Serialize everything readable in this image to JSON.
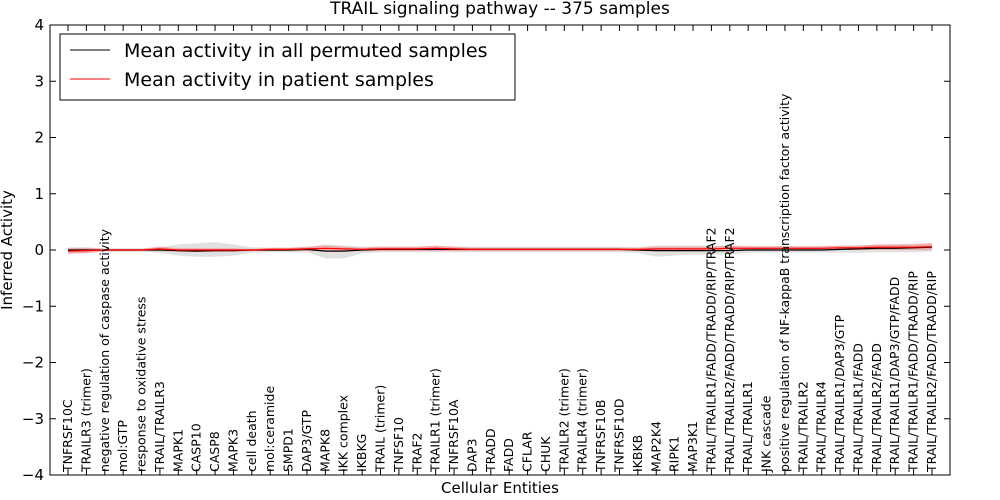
{
  "chart_data": {
    "type": "line",
    "title": "TRAIL signaling pathway -- 375 samples",
    "xlabel": "Cellular Entities",
    "ylabel": "Inferred Activity",
    "ylim": [
      -4,
      4
    ],
    "yticks": [
      -4,
      -3,
      -2,
      -1,
      0,
      1,
      2,
      3,
      4
    ],
    "ytick_labels": [
      "−4",
      "−3",
      "−2",
      "−1",
      "0",
      "1",
      "2",
      "3",
      "4"
    ],
    "grid": false,
    "legend_position": "top-left",
    "categories": [
      "TNFRSF10C",
      "TRAILR3 (trimer)",
      "negative regulation of caspase activity",
      "mol:GTP",
      "response to oxidative stress",
      "TRAIL/TRAILR3",
      "MAPK1",
      "CASP10",
      "CASP8",
      "MAPK3",
      "cell death",
      "mol:ceramide",
      "SMPD1",
      "DAP3/GTP",
      "MAPK8",
      "IKK complex",
      "IKBKG",
      "TRAIL (trimer)",
      "TNFSF10",
      "TRAF2",
      "TRAILR1 (trimer)",
      "TNFRSF10A",
      "DAP3",
      "TRADD",
      "FADD",
      "CFLAR",
      "CHUK",
      "TRAILR2 (trimer)",
      "TRAILR4 (trimer)",
      "TNFRSF10B",
      "TNFRSF10D",
      "IKBKB",
      "MAP2K4",
      "RIPK1",
      "MAP3K1",
      "TRAIL/TRAILR1/FADD/TRADD/RIP/TRAF2",
      "TRAIL/TRAILR2/FADD/TRADD/RIP/TRAF2",
      "TRAIL/TRAILR1",
      "JNK cascade",
      "positive regulation of NF-kappaB transcription factor activity",
      "TRAIL/TRAILR2",
      "TRAIL/TRAILR4",
      "TRAIL/TRAILR1/DAP3/GTP",
      "TRAIL/TRAILR1/FADD",
      "TRAIL/TRAILR2/FADD",
      "TRAIL/TRAILR1/DAP3/GTP/FADD",
      "TRAIL/TRAILR1/FADD/TRADD/RIP",
      "TRAIL/TRAILR2/FADD/TRADD/RIP"
    ],
    "series": [
      {
        "name": "Mean activity in all permuted samples",
        "color": "#000000",
        "values": [
          0.0,
          0.0,
          0.0,
          0.0,
          0.0,
          0.0,
          -0.01,
          -0.02,
          -0.01,
          -0.01,
          0.0,
          0.0,
          0.0,
          0.01,
          -0.02,
          -0.02,
          0.0,
          0.01,
          0.01,
          0.01,
          0.01,
          0.01,
          0.01,
          0.01,
          0.01,
          0.01,
          0.01,
          0.01,
          0.01,
          0.01,
          0.01,
          0.0,
          -0.01,
          -0.01,
          -0.01,
          -0.01,
          -0.01,
          0.0,
          0.0,
          0.0,
          0.0,
          0.0,
          0.01,
          0.02,
          0.03,
          0.03,
          0.04,
          0.05
        ],
        "band_lower": [
          -0.05,
          -0.05,
          -0.03,
          -0.03,
          -0.03,
          -0.05,
          -0.1,
          -0.12,
          -0.12,
          -0.1,
          -0.05,
          -0.04,
          -0.04,
          -0.04,
          -0.15,
          -0.15,
          -0.06,
          -0.04,
          -0.04,
          -0.04,
          -0.04,
          -0.04,
          -0.04,
          -0.04,
          -0.04,
          -0.04,
          -0.04,
          -0.04,
          -0.04,
          -0.04,
          -0.04,
          -0.05,
          -0.12,
          -0.1,
          -0.08,
          -0.08,
          -0.08,
          -0.05,
          -0.05,
          -0.05,
          -0.05,
          -0.05,
          -0.05,
          -0.05,
          -0.04,
          -0.04,
          -0.04,
          -0.03
        ],
        "band_upper": [
          0.05,
          0.05,
          0.03,
          0.03,
          0.03,
          0.05,
          0.1,
          0.12,
          0.14,
          0.1,
          0.05,
          0.04,
          0.04,
          0.05,
          0.1,
          0.08,
          0.06,
          0.06,
          0.06,
          0.06,
          0.06,
          0.06,
          0.06,
          0.06,
          0.06,
          0.06,
          0.06,
          0.06,
          0.06,
          0.06,
          0.06,
          0.05,
          0.08,
          0.08,
          0.08,
          0.08,
          0.08,
          0.06,
          0.06,
          0.06,
          0.06,
          0.06,
          0.07,
          0.08,
          0.09,
          0.1,
          0.11,
          0.12
        ]
      },
      {
        "name": "Mean activity in patient samples",
        "color": "#ff0000",
        "values": [
          -0.02,
          -0.01,
          0.0,
          0.0,
          0.0,
          0.02,
          0.0,
          0.0,
          0.0,
          0.0,
          0.0,
          0.01,
          0.01,
          0.02,
          0.03,
          0.02,
          0.01,
          0.02,
          0.02,
          0.02,
          0.03,
          0.02,
          0.01,
          0.01,
          0.01,
          0.01,
          0.01,
          0.01,
          0.01,
          0.01,
          0.01,
          0.01,
          0.02,
          0.02,
          0.02,
          0.02,
          0.03,
          0.03,
          0.03,
          0.03,
          0.03,
          0.03,
          0.04,
          0.04,
          0.05,
          0.05,
          0.05,
          0.06
        ],
        "band_lower": [
          -0.07,
          -0.06,
          -0.02,
          -0.02,
          -0.02,
          -0.02,
          -0.03,
          -0.03,
          -0.03,
          -0.03,
          -0.02,
          -0.02,
          -0.02,
          -0.02,
          -0.02,
          -0.02,
          -0.02,
          -0.02,
          -0.02,
          -0.02,
          -0.02,
          -0.02,
          -0.02,
          -0.02,
          -0.02,
          -0.02,
          -0.02,
          -0.02,
          -0.02,
          -0.02,
          -0.02,
          -0.02,
          -0.02,
          -0.02,
          -0.02,
          -0.02,
          -0.02,
          -0.01,
          -0.01,
          -0.01,
          -0.01,
          -0.01,
          0.0,
          0.0,
          0.0,
          0.0,
          0.0,
          0.0
        ],
        "band_upper": [
          0.03,
          0.04,
          0.02,
          0.02,
          0.02,
          0.06,
          0.03,
          0.03,
          0.03,
          0.03,
          0.02,
          0.04,
          0.04,
          0.06,
          0.08,
          0.06,
          0.04,
          0.06,
          0.06,
          0.06,
          0.08,
          0.06,
          0.04,
          0.04,
          0.04,
          0.04,
          0.04,
          0.04,
          0.04,
          0.04,
          0.04,
          0.04,
          0.06,
          0.06,
          0.06,
          0.06,
          0.08,
          0.07,
          0.07,
          0.07,
          0.07,
          0.07,
          0.08,
          0.08,
          0.1,
          0.1,
          0.1,
          0.12
        ]
      }
    ]
  }
}
